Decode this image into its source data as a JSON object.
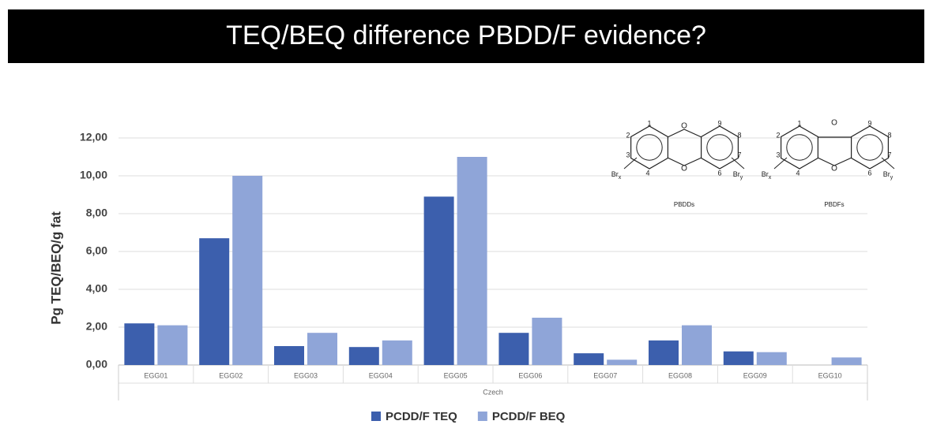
{
  "chart_data": {
    "type": "bar",
    "title": "TEQ/BEQ difference PBDD/F evidence?",
    "ylabel": "Pg TEQ/BEQ/g fat",
    "group_label": "Czech",
    "categories": [
      "EGG01",
      "EGG02",
      "EGG03",
      "EGG04",
      "EGG05",
      "EGG06",
      "EGG07",
      "EGG08",
      "EGG09",
      "EGG10"
    ],
    "series": [
      {
        "name": "PCDD/F TEQ",
        "color": "#3c5fad",
        "values": [
          2.2,
          6.7,
          1.0,
          0.95,
          8.9,
          1.7,
          0.62,
          1.3,
          0.72,
          0
        ]
      },
      {
        "name": "PCDD/F BEQ",
        "color": "#8fa5d8",
        "values": [
          2.1,
          10.0,
          1.7,
          1.3,
          11.0,
          2.5,
          0.28,
          2.1,
          0.68,
          0.4
        ]
      }
    ],
    "ylim": [
      0,
      12
    ],
    "yticks": [
      {
        "value": 0,
        "label": "0,00"
      },
      {
        "value": 2,
        "label": "2,00"
      },
      {
        "value": 4,
        "label": "4,00"
      },
      {
        "value": 6,
        "label": "6,00"
      },
      {
        "value": 8,
        "label": "8,00"
      },
      {
        "value": 10,
        "label": "10,00"
      },
      {
        "value": 12,
        "label": "12,00"
      }
    ],
    "grid": true,
    "legend": "bottom"
  },
  "structures": [
    {
      "label": "PBDDs",
      "atoms": [
        "1",
        "2",
        "3",
        "4",
        "6",
        "7",
        "8",
        "9"
      ],
      "oxygens": [
        "O",
        "O"
      ],
      "substituents": [
        {
          "base": "Br",
          "sub": "x"
        },
        {
          "base": "Br",
          "sub": "y"
        }
      ]
    },
    {
      "label": "PBDFs",
      "atoms": [
        "1",
        "2",
        "3",
        "4",
        "6",
        "7",
        "8",
        "9"
      ],
      "oxygens": [
        "O",
        "O"
      ],
      "substituents": [
        {
          "base": "Br",
          "sub": "x"
        },
        {
          "base": "Br",
          "sub": "y"
        }
      ]
    }
  ]
}
